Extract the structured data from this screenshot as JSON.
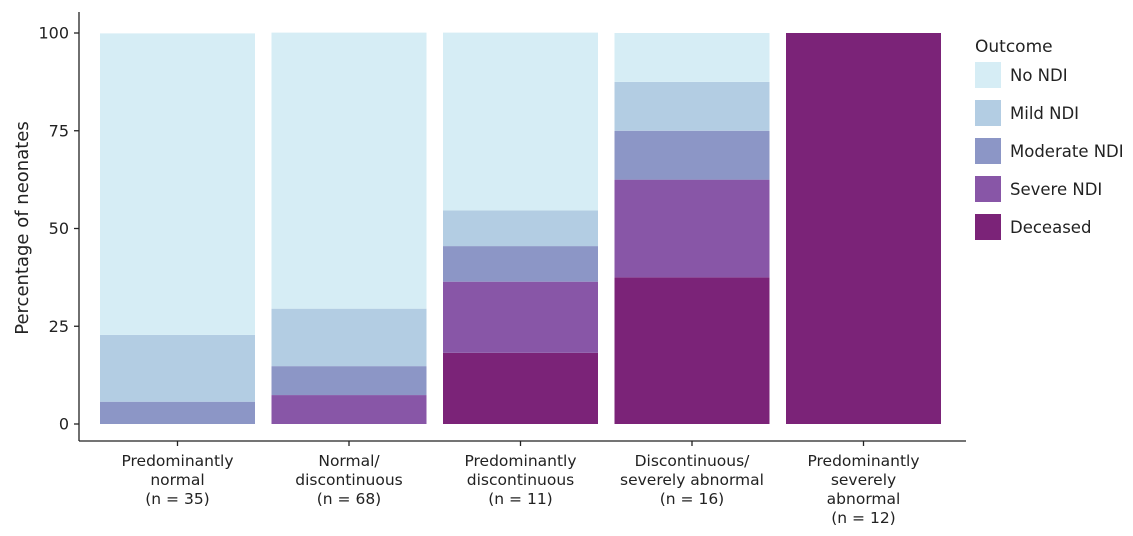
{
  "chart_data": {
    "type": "bar",
    "stacked": true,
    "ylabel": "Percentage of neonates",
    "xlabel": "",
    "ylim": [
      0,
      100
    ],
    "yticks": [
      "0",
      "25",
      "50",
      "75",
      "100"
    ],
    "categories": [
      [
        "Predominantly",
        "normal",
        "(n = 35)"
      ],
      [
        "Normal/",
        "discontinuous",
        "(n = 68)"
      ],
      [
        "Predominantly",
        "discontinuous",
        "(n = 11)"
      ],
      [
        "Discontinuous/",
        "severely abnormal",
        "(n = 16)"
      ],
      [
        "Predominantly",
        "severely",
        "abnormal",
        "(n = 12)"
      ]
    ],
    "legend_title": "Outcome",
    "legend_position": "right",
    "grid": false,
    "series": [
      {
        "name": "No NDI",
        "color": "#d6edf5",
        "values": [
          77.1,
          70.6,
          45.5,
          12.5,
          0
        ]
      },
      {
        "name": "Mild NDI",
        "color": "#b3cde3",
        "values": [
          17.1,
          14.7,
          9.1,
          12.5,
          0
        ]
      },
      {
        "name": "Moderate NDI",
        "color": "#8c96c6",
        "values": [
          5.7,
          7.4,
          9.1,
          12.5,
          0
        ]
      },
      {
        "name": "Severe NDI",
        "color": "#8856a7",
        "values": [
          0,
          7.4,
          18.2,
          25.0,
          0
        ]
      },
      {
        "name": "Deceased",
        "color": "#7b2378",
        "values": [
          0,
          0,
          18.2,
          37.5,
          100
        ]
      }
    ]
  }
}
